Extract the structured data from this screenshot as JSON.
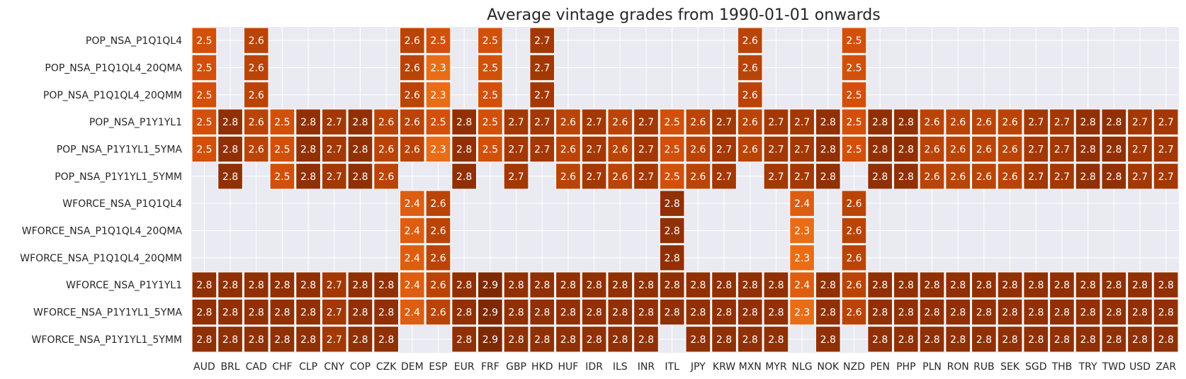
{
  "chart_data": {
    "type": "heatmap",
    "title": "Average vintage grades from 1990-01-01 onwards",
    "columns": [
      "AUD",
      "BRL",
      "CAD",
      "CHF",
      "CLP",
      "CNY",
      "COP",
      "CZK",
      "DEM",
      "ESP",
      "EUR",
      "FRF",
      "GBP",
      "HKD",
      "HUF",
      "IDR",
      "ILS",
      "INR",
      "ITL",
      "JPY",
      "KRW",
      "MXN",
      "MYR",
      "NLG",
      "NOK",
      "NZD",
      "PEN",
      "PHP",
      "PLN",
      "RON",
      "RUB",
      "SEK",
      "SGD",
      "THB",
      "TRY",
      "TWD",
      "USD",
      "ZAR"
    ],
    "rows": [
      "POP_NSA_P1Q1QL4",
      "POP_NSA_P1Q1QL4_20QMA",
      "POP_NSA_P1Q1QL4_20QMM",
      "POP_NSA_P1Y1YL1",
      "POP_NSA_P1Y1YL1_5YMA",
      "POP_NSA_P1Y1YL1_5YMM",
      "WFORCE_NSA_P1Q1QL4",
      "WFORCE_NSA_P1Q1QL4_20QMA",
      "WFORCE_NSA_P1Q1QL4_20QMM",
      "WFORCE_NSA_P1Y1YL1",
      "WFORCE_NSA_P1Y1YL1_5YMA",
      "WFORCE_NSA_P1Y1YL1_5YMM"
    ],
    "values": [
      [
        2.5,
        null,
        2.6,
        null,
        null,
        null,
        null,
        null,
        2.6,
        2.5,
        null,
        2.5,
        null,
        2.7,
        null,
        null,
        null,
        null,
        null,
        null,
        null,
        2.6,
        null,
        null,
        null,
        2.5,
        null,
        null,
        null,
        null,
        null,
        null,
        null,
        null,
        null,
        null,
        null,
        null
      ],
      [
        2.5,
        null,
        2.6,
        null,
        null,
        null,
        null,
        null,
        2.6,
        2.3,
        null,
        2.5,
        null,
        2.7,
        null,
        null,
        null,
        null,
        null,
        null,
        null,
        2.6,
        null,
        null,
        null,
        2.5,
        null,
        null,
        null,
        null,
        null,
        null,
        null,
        null,
        null,
        null,
        null,
        null
      ],
      [
        2.5,
        null,
        2.6,
        null,
        null,
        null,
        null,
        null,
        2.6,
        2.3,
        null,
        2.5,
        null,
        2.7,
        null,
        null,
        null,
        null,
        null,
        null,
        null,
        2.6,
        null,
        null,
        null,
        2.5,
        null,
        null,
        null,
        null,
        null,
        null,
        null,
        null,
        null,
        null,
        null,
        null
      ],
      [
        2.5,
        2.8,
        2.6,
        2.5,
        2.8,
        2.7,
        2.8,
        2.6,
        2.6,
        2.5,
        2.8,
        2.5,
        2.7,
        2.7,
        2.6,
        2.7,
        2.6,
        2.7,
        2.5,
        2.6,
        2.7,
        2.6,
        2.7,
        2.7,
        2.8,
        2.5,
        2.8,
        2.8,
        2.6,
        2.6,
        2.6,
        2.6,
        2.7,
        2.7,
        2.8,
        2.8,
        2.7,
        2.7
      ],
      [
        2.5,
        2.8,
        2.6,
        2.5,
        2.8,
        2.7,
        2.8,
        2.6,
        2.6,
        2.3,
        2.8,
        2.5,
        2.7,
        2.7,
        2.6,
        2.7,
        2.6,
        2.7,
        2.5,
        2.6,
        2.7,
        2.6,
        2.7,
        2.7,
        2.8,
        2.5,
        2.8,
        2.8,
        2.6,
        2.6,
        2.6,
        2.6,
        2.7,
        2.7,
        2.8,
        2.8,
        2.7,
        2.7
      ],
      [
        null,
        2.8,
        null,
        2.5,
        2.8,
        2.7,
        2.8,
        2.6,
        null,
        null,
        2.8,
        null,
        2.7,
        null,
        2.6,
        2.7,
        2.6,
        2.7,
        2.5,
        2.6,
        2.7,
        null,
        2.7,
        2.7,
        2.8,
        null,
        2.8,
        2.8,
        2.6,
        2.6,
        2.6,
        2.6,
        2.7,
        2.7,
        2.8,
        2.8,
        2.7,
        2.7
      ],
      [
        null,
        null,
        null,
        null,
        null,
        null,
        null,
        null,
        2.4,
        2.6,
        null,
        null,
        null,
        null,
        null,
        null,
        null,
        null,
        2.8,
        null,
        null,
        null,
        null,
        2.4,
        null,
        2.6,
        null,
        null,
        null,
        null,
        null,
        null,
        null,
        null,
        null,
        null,
        null,
        null
      ],
      [
        null,
        null,
        null,
        null,
        null,
        null,
        null,
        null,
        2.4,
        2.6,
        null,
        null,
        null,
        null,
        null,
        null,
        null,
        null,
        2.8,
        null,
        null,
        null,
        null,
        2.3,
        null,
        2.6,
        null,
        null,
        null,
        null,
        null,
        null,
        null,
        null,
        null,
        null,
        null,
        null
      ],
      [
        null,
        null,
        null,
        null,
        null,
        null,
        null,
        null,
        2.4,
        2.6,
        null,
        null,
        null,
        null,
        null,
        null,
        null,
        null,
        2.8,
        null,
        null,
        null,
        null,
        2.3,
        null,
        2.6,
        null,
        null,
        null,
        null,
        null,
        null,
        null,
        null,
        null,
        null,
        null,
        null
      ],
      [
        2.8,
        2.8,
        2.8,
        2.8,
        2.8,
        2.7,
        2.8,
        2.8,
        2.4,
        2.6,
        2.8,
        2.9,
        2.8,
        2.8,
        2.8,
        2.8,
        2.8,
        2.8,
        2.8,
        2.8,
        2.8,
        2.8,
        2.8,
        2.4,
        2.8,
        2.6,
        2.8,
        2.8,
        2.8,
        2.8,
        2.8,
        2.8,
        2.8,
        2.8,
        2.8,
        2.8,
        2.8,
        2.8
      ],
      [
        2.8,
        2.8,
        2.8,
        2.8,
        2.8,
        2.7,
        2.8,
        2.8,
        2.4,
        2.6,
        2.8,
        2.9,
        2.8,
        2.8,
        2.8,
        2.8,
        2.8,
        2.8,
        2.8,
        2.8,
        2.8,
        2.8,
        2.8,
        2.3,
        2.8,
        2.6,
        2.8,
        2.8,
        2.8,
        2.8,
        2.8,
        2.8,
        2.8,
        2.8,
        2.8,
        2.8,
        2.8,
        2.8
      ],
      [
        2.8,
        2.8,
        2.8,
        2.8,
        2.8,
        2.7,
        2.8,
        2.8,
        null,
        null,
        2.8,
        2.9,
        2.8,
        2.8,
        2.8,
        2.8,
        2.8,
        2.8,
        null,
        2.8,
        2.8,
        2.8,
        2.8,
        null,
        2.8,
        null,
        2.8,
        2.8,
        2.8,
        2.8,
        2.8,
        2.8,
        2.8,
        2.8,
        2.8,
        2.8,
        2.8,
        2.8
      ]
    ],
    "colormap": "Oranges",
    "grid_background": "#eaeaf2",
    "cell_border": "#ffffff"
  }
}
